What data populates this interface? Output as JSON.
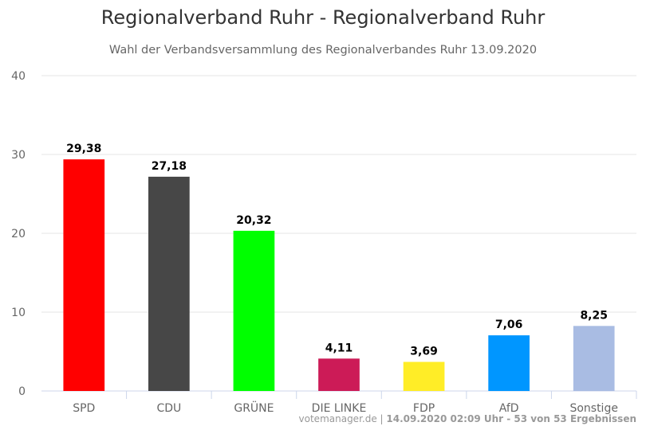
{
  "chart_data": {
    "type": "bar",
    "title": "Regionalverband Ruhr - Regionalverband Ruhr",
    "subtitle": "Wahl der Verbandsversammlung des Regionalverbandes Ruhr 13.09.2020",
    "categories": [
      "SPD",
      "CDU",
      "GRÜNE",
      "DIE LINKE",
      "FDP",
      "AfD",
      "Sonstige"
    ],
    "values": [
      29.38,
      27.18,
      20.32,
      4.11,
      3.69,
      7.06,
      8.25
    ],
    "value_labels": [
      "29,38",
      "27,18",
      "20,32",
      "4,11",
      "3,69",
      "7,06",
      "8,25"
    ],
    "colors": [
      "#ff0000",
      "#474747",
      "#00ff00",
      "#cc1b57",
      "#ffed27",
      "#0096ff",
      "#a9bce3"
    ],
    "ylim": [
      0,
      40
    ],
    "yticks": [
      0,
      10,
      20,
      30,
      40
    ],
    "xlabel": "",
    "ylabel": "",
    "grid": true,
    "legend": "none"
  },
  "credits": {
    "source": "votemanager.de",
    "separator": " | ",
    "info": "14.09.2020 02:09 Uhr - 53 von 53 Ergebnissen"
  }
}
